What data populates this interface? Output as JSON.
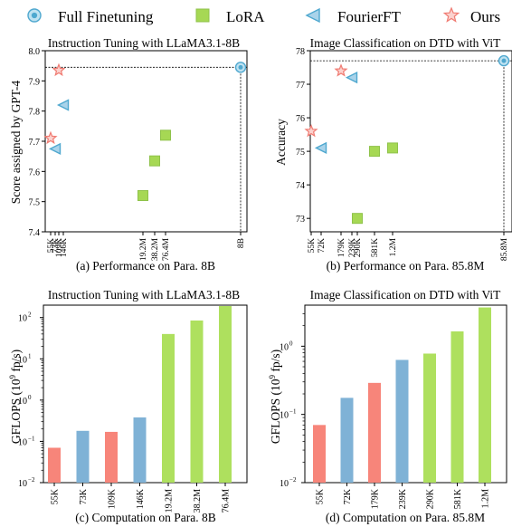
{
  "legend": [
    {
      "label": "Full Finetuning",
      "marker": "circle",
      "color": "#4fa8cf"
    },
    {
      "label": "LoRA",
      "marker": "square",
      "color": "#a6d854"
    },
    {
      "label": "FourierFT",
      "marker": "triangle-left",
      "color": "#4fa8cf"
    },
    {
      "label": "Ours",
      "marker": "star",
      "color": "#f07b72"
    }
  ],
  "captions": [
    "(a) Performance on Para. 8B",
    "(b) Performance on Para. 85.8M",
    "(c) Computation on Para. 8B",
    "(d) Computation on Para. 85.8M"
  ],
  "colors": {
    "full": "#4fa8cf",
    "lora": "#a6d854",
    "fourier": "#4fa8cf",
    "ours": "#f07b72",
    "bar_blue": "#7fb2d6",
    "bar_green": "#aee05e",
    "bar_red": "#f7857a"
  },
  "chart_data": [
    {
      "type": "scatter",
      "title": "Instruction Tuning with LLaMA3.1-8B",
      "xlabel": "",
      "ylabel": "Score assigned by GPT-4",
      "ylim": [
        7.4,
        8.0
      ],
      "yticks": [
        7.4,
        7.5,
        7.6,
        7.7,
        7.8,
        7.9,
        8.0
      ],
      "xticks": [
        "55K",
        "73K",
        "109K",
        "146K",
        "19.2M",
        "38.2M",
        "76.4M",
        "8B"
      ],
      "reference_line": 7.945,
      "points": [
        {
          "group": "Full Finetuning",
          "x": "8B",
          "y": 7.945
        },
        {
          "group": "LoRA",
          "x": "19.2M",
          "y": 7.52
        },
        {
          "group": "LoRA",
          "x": "38.2M",
          "y": 7.635
        },
        {
          "group": "LoRA",
          "x": "76.4M",
          "y": 7.72
        },
        {
          "group": "FourierFT",
          "x": "73K",
          "y": 7.675
        },
        {
          "group": "FourierFT",
          "x": "146K",
          "y": 7.82
        },
        {
          "group": "Ours",
          "x": "55K",
          "y": 7.71
        },
        {
          "group": "Ours",
          "x": "109K",
          "y": 7.935
        }
      ]
    },
    {
      "type": "scatter",
      "title": "Image Classification on DTD with ViT",
      "xlabel": "",
      "ylabel": "Accuracy",
      "ylim": [
        72.6,
        78.0
      ],
      "yticks": [
        73,
        74,
        75,
        76,
        77,
        78
      ],
      "xticks": [
        "55K",
        "72K",
        "179K",
        "239K",
        "290K",
        "581K",
        "1.2M",
        "85.8M"
      ],
      "reference_line": 77.7,
      "points": [
        {
          "group": "Full Finetuning",
          "x": "85.8M",
          "y": 77.7
        },
        {
          "group": "LoRA",
          "x": "290K",
          "y": 73.0
        },
        {
          "group": "LoRA",
          "x": "581K",
          "y": 75.0
        },
        {
          "group": "LoRA",
          "x": "1.2M",
          "y": 75.1
        },
        {
          "group": "FourierFT",
          "x": "72K",
          "y": 75.1
        },
        {
          "group": "FourierFT",
          "x": "239K",
          "y": 77.2
        },
        {
          "group": "Ours",
          "x": "55K",
          "y": 75.6
        },
        {
          "group": "Ours",
          "x": "179K",
          "y": 77.4
        }
      ]
    },
    {
      "type": "bar",
      "title": "Instruction Tuning with LLaMA3.1-8B",
      "xlabel": "",
      "ylabel": "GFLOPS (10^9 fp/s)",
      "yscale": "log",
      "ylim": [
        0.01,
        200
      ],
      "yticks": [
        "10^-2",
        "10^-1",
        "10^0",
        "10^1",
        "10^2"
      ],
      "categories": [
        "55K",
        "73K",
        "109K",
        "146K",
        "19.2M",
        "38.2M",
        "76.4M"
      ],
      "values": [
        0.07,
        0.18,
        0.17,
        0.38,
        40,
        85,
        190
      ],
      "bar_colors": [
        "red",
        "blue",
        "red",
        "blue",
        "green",
        "green",
        "green"
      ]
    },
    {
      "type": "bar",
      "title": "Image Classification on DTD with ViT",
      "xlabel": "",
      "ylabel": "GFLOPS (10^9 fp/s)",
      "yscale": "log",
      "ylim": [
        0.01,
        4
      ],
      "yticks": [
        "10^-2",
        "10^-1",
        "10^0"
      ],
      "categories": [
        "55K",
        "72K",
        "179K",
        "239K",
        "290K",
        "581K",
        "1.2M"
      ],
      "values": [
        0.07,
        0.175,
        0.29,
        0.63,
        0.78,
        1.65,
        3.7
      ],
      "bar_colors": [
        "red",
        "blue",
        "red",
        "blue",
        "green",
        "green",
        "green"
      ]
    }
  ]
}
